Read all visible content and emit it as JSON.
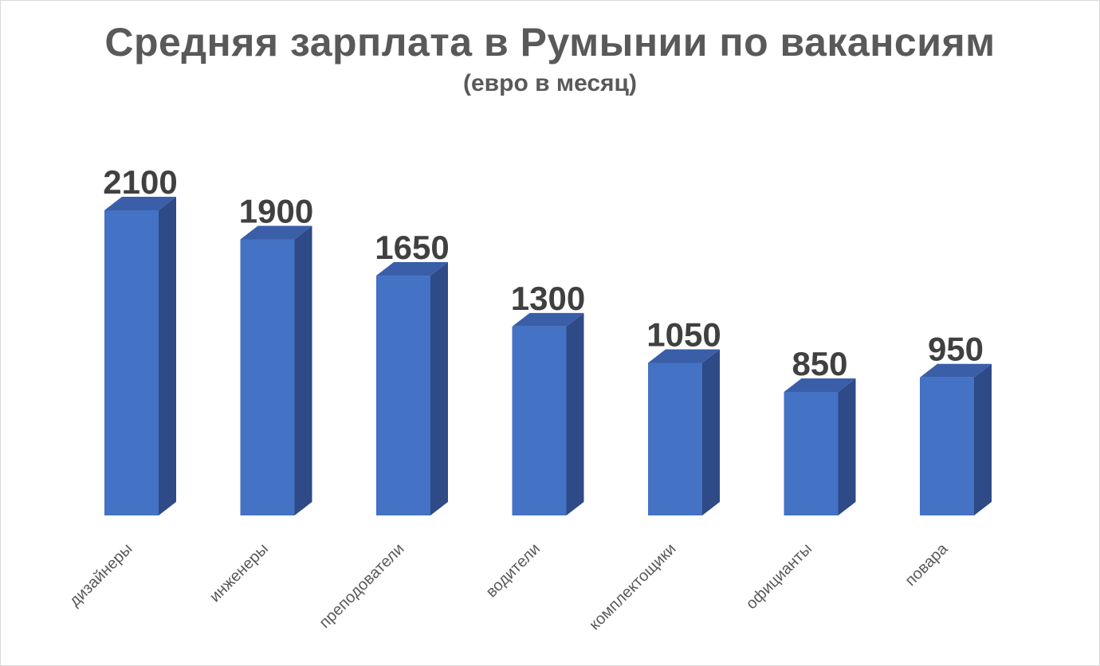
{
  "chart_data": {
    "type": "bar",
    "title": "Средняя зарплата в Румынии по вакансиям",
    "subtitle": "(евро в месяц)",
    "categories": [
      "дизайнеры",
      "инженеры",
      "преподователи",
      "водители",
      "комплектощики",
      "официанты",
      "повара"
    ],
    "values": [
      2100,
      1900,
      1650,
      1300,
      1050,
      850,
      950
    ],
    "ylim": [
      0,
      2100
    ],
    "grid": false,
    "legend": "none",
    "data_labels": true,
    "style": "3d-column",
    "colors": {
      "front": "#4472c4",
      "side": "#2e4a87",
      "top": "#3a5fa8",
      "text": "#595959",
      "value_text": "#404040"
    }
  }
}
